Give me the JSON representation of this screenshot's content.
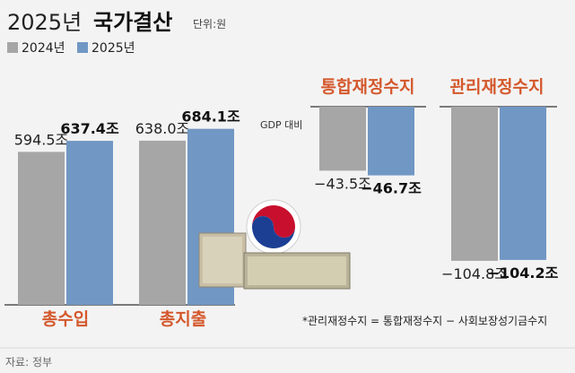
{
  "header": {
    "year": "2025년",
    "title": "국가결산",
    "unit": "단위:원"
  },
  "legend": [
    {
      "label": "2024년",
      "color": "#a6a6a6"
    },
    {
      "label": "2025년",
      "color": "#7197c4"
    }
  ],
  "colors": {
    "gray": "#a6a6a6",
    "blue": "#7197c4",
    "accent": "#d4582c"
  },
  "chart_data": [
    {
      "type": "bar",
      "categories": [
        "총수입",
        "총지출"
      ],
      "series": [
        {
          "name": "2024년",
          "values": [
            594.5,
            638.0
          ],
          "labels": [
            "594.5조",
            "638.0조"
          ]
        },
        {
          "name": "2025년",
          "values": [
            637.4,
            684.1
          ],
          "labels": [
            "637.4조",
            "684.1조"
          ]
        }
      ]
    },
    {
      "type": "bar",
      "title": "통합재정수지",
      "subtitle": "GDP 대비",
      "series": [
        {
          "name": "2024년",
          "values": [
            -43.5
          ],
          "labels": [
            "−43.5조"
          ]
        },
        {
          "name": "2025년",
          "values": [
            -46.7
          ],
          "labels": [
            "−46.7조"
          ]
        }
      ]
    },
    {
      "type": "bar",
      "title": "관리재정수지",
      "series": [
        {
          "name": "2024년",
          "values": [
            -104.8
          ],
          "labels": [
            "−104.8조"
          ]
        },
        {
          "name": "2025년",
          "values": [
            -104.2
          ],
          "labels": [
            "−104.2조"
          ]
        }
      ]
    }
  ],
  "note": "*관리재정수지 = 통합재정수지 − 사회보장성기금수지",
  "source": "자료: 정부"
}
